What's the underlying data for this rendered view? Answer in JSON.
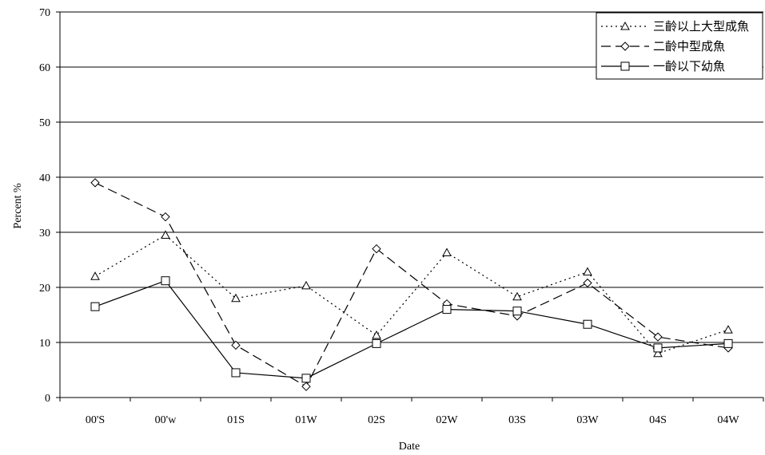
{
  "chart_data": {
    "type": "line",
    "title": "",
    "xlabel": "Date",
    "ylabel": "Percent %",
    "categories": [
      "00'S",
      "00'w",
      "01S",
      "01W",
      "02S",
      "02W",
      "03S",
      "03W",
      "04S",
      "04W"
    ],
    "ylim": [
      0,
      70
    ],
    "yticks": [
      0,
      10,
      20,
      30,
      40,
      50,
      60,
      70
    ],
    "grid": "horizontal",
    "legend_position": "top-right",
    "series": [
      {
        "name": "三齡以上大型成魚",
        "line": "dotted",
        "marker": "triangle",
        "values": [
          22,
          29.5,
          18,
          20.3,
          11.3,
          26.3,
          18.3,
          22.8,
          8,
          12.3
        ]
      },
      {
        "name": "二齡中型成魚",
        "line": "dashed",
        "marker": "diamond",
        "values": [
          39,
          32.8,
          9.5,
          2,
          27,
          17,
          14.8,
          20.8,
          11,
          9
        ]
      },
      {
        "name": "一齡以下幼魚",
        "line": "solid",
        "marker": "square",
        "values": [
          16.5,
          21.2,
          4.5,
          3.5,
          9.8,
          16,
          15.7,
          13.3,
          9,
          9.8
        ]
      }
    ]
  }
}
